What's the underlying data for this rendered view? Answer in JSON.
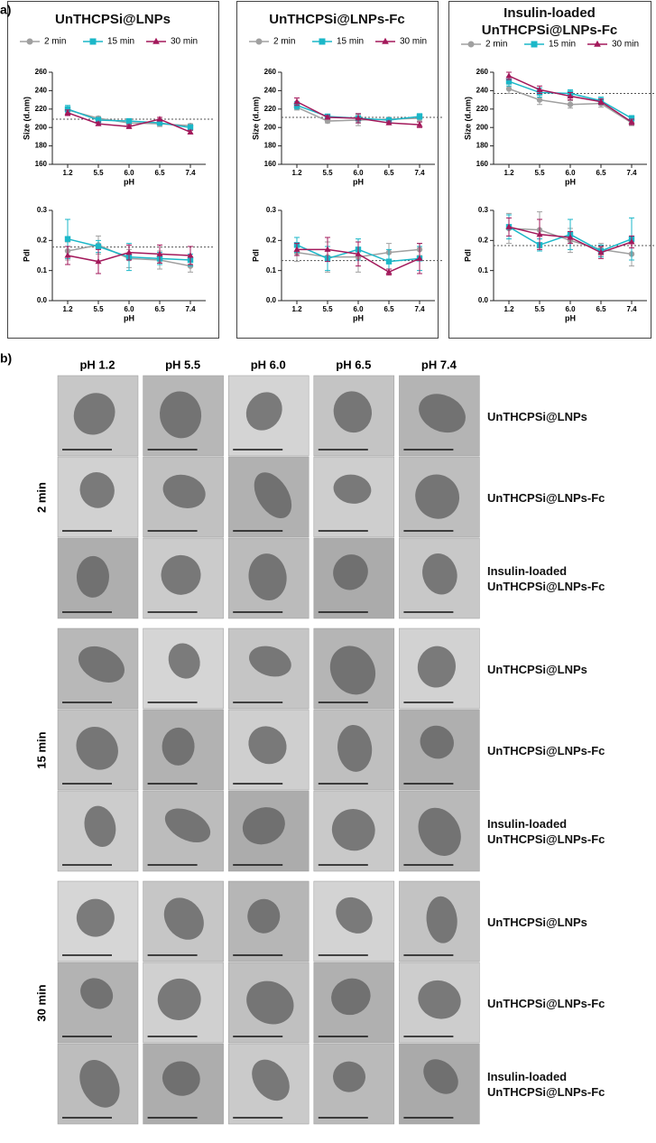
{
  "panel_a_label": "a)",
  "panel_b_label": "b)",
  "chart_data": [
    {
      "type": "line",
      "title": "UnTHCPSi@LNPs",
      "ylabel": "Size (d.nm)",
      "xlabel": "pH",
      "categories": [
        "1.2",
        "5.5",
        "6.0",
        "6.5",
        "7.4"
      ],
      "ylim": [
        160,
        260
      ],
      "yticks": [
        160,
        180,
        200,
        220,
        240,
        260
      ],
      "reference": 209,
      "series": [
        {
          "name": "2 min",
          "color": "#a0a0a0",
          "marker": "circle",
          "values": [
            219,
            210,
            205,
            204,
            202
          ],
          "errors": [
            3,
            2,
            2,
            3,
            2
          ]
        },
        {
          "name": "15 min",
          "color": "#1bb7c8",
          "marker": "square",
          "values": [
            220,
            208,
            207,
            205,
            200
          ],
          "errors": [
            4,
            3,
            2,
            2,
            3
          ]
        },
        {
          "name": "30 min",
          "color": "#a3195b",
          "marker": "triangle",
          "values": [
            216,
            204,
            201,
            209,
            195
          ],
          "errors": [
            3,
            2,
            2,
            2,
            2
          ]
        }
      ]
    },
    {
      "type": "line",
      "ylabel": "PdI",
      "xlabel": "pH",
      "categories": [
        "1.2",
        "5.5",
        "6.0",
        "6.5",
        "7.4"
      ],
      "ylim": [
        0,
        0.3
      ],
      "yticks": [
        {
          "value": 0,
          "label": "0.0"
        },
        0.1,
        0.2,
        0.3
      ],
      "reference": 0.178,
      "series": [
        {
          "color": "#a0a0a0",
          "marker": "circle",
          "values": [
            0.165,
            0.185,
            0.14,
            0.135,
            0.115
          ],
          "errors": [
            0.03,
            0.03,
            0.03,
            0.03,
            0.02
          ]
        },
        {
          "color": "#1bb7c8",
          "marker": "square",
          "values": [
            0.205,
            0.18,
            0.145,
            0.14,
            0.135
          ],
          "errors": [
            0.065,
            0.02,
            0.045,
            0.02,
            0.02
          ]
        },
        {
          "color": "#a3195b",
          "marker": "triangle",
          "values": [
            0.15,
            0.13,
            0.16,
            0.155,
            0.15
          ],
          "errors": [
            0.03,
            0.04,
            0.025,
            0.03,
            0.03
          ]
        }
      ]
    },
    {
      "type": "line",
      "title": "UnTHCPSi@LNPs-Fc",
      "ylabel": "Size (d.nm)",
      "xlabel": "pH",
      "categories": [
        "1.2",
        "5.5",
        "6.0",
        "6.5",
        "7.4"
      ],
      "ylim": [
        160,
        260
      ],
      "yticks": [
        160,
        180,
        200,
        220,
        240,
        260
      ],
      "reference": 211,
      "series": [
        {
          "name": "2 min",
          "color": "#a0a0a0",
          "marker": "circle",
          "values": [
            222,
            207,
            208,
            209,
            210
          ],
          "errors": [
            3,
            2,
            6,
            2,
            3
          ]
        },
        {
          "name": "15 min",
          "color": "#1bb7c8",
          "marker": "square",
          "values": [
            224,
            212,
            210,
            208,
            212
          ],
          "errors": [
            4,
            2,
            5,
            2,
            3
          ]
        },
        {
          "name": "30 min",
          "color": "#a3195b",
          "marker": "triangle",
          "values": [
            228,
            211,
            210,
            205,
            203
          ],
          "errors": [
            4,
            2,
            5,
            2,
            3
          ]
        }
      ]
    },
    {
      "type": "line",
      "ylabel": "PdI",
      "xlabel": "pH",
      "categories": [
        "1.2",
        "5.5",
        "6.0",
        "6.5",
        "7.4"
      ],
      "ylim": [
        0,
        0.3
      ],
      "yticks": [
        {
          "value": 0,
          "label": "0.0"
        },
        0.1,
        0.2,
        0.3
      ],
      "reference": 0.133,
      "series": [
        {
          "color": "#a0a0a0",
          "marker": "circle",
          "values": [
            0.16,
            0.145,
            0.145,
            0.16,
            0.17
          ],
          "errors": [
            0.03,
            0.05,
            0.05,
            0.03,
            0.02
          ]
        },
        {
          "color": "#1bb7c8",
          "marker": "square",
          "values": [
            0.185,
            0.14,
            0.17,
            0.13,
            0.14
          ],
          "errors": [
            0.025,
            0.04,
            0.035,
            0.04,
            0.04
          ]
        },
        {
          "color": "#a3195b",
          "marker": "triangle",
          "values": [
            0.17,
            0.17,
            0.155,
            0.095,
            0.14
          ],
          "errors": [
            0.02,
            0.04,
            0.04,
            0.01,
            0.05
          ]
        }
      ]
    },
    {
      "type": "line",
      "title": "Insulin-loaded UnTHCPSi@LNPs-Fc",
      "ylabel": "Size (d.nm)",
      "xlabel": "pH",
      "categories": [
        "1.2",
        "5.5",
        "6.0",
        "6.5",
        "7.4"
      ],
      "ylim": [
        160,
        260
      ],
      "yticks": [
        160,
        180,
        200,
        220,
        240,
        260
      ],
      "reference": 237,
      "series": [
        {
          "name": "2 min",
          "color": "#a0a0a0",
          "marker": "circle",
          "values": [
            242,
            230,
            225,
            226,
            205
          ],
          "errors": [
            5,
            5,
            4,
            4,
            3
          ]
        },
        {
          "name": "15 min",
          "color": "#1bb7c8",
          "marker": "square",
          "values": [
            250,
            238,
            237,
            229,
            210
          ],
          "errors": [
            5,
            5,
            4,
            4,
            3
          ]
        },
        {
          "name": "30 min",
          "color": "#a3195b",
          "marker": "triangle",
          "values": [
            256,
            241,
            234,
            228,
            206
          ],
          "errors": [
            4,
            4,
            4,
            3,
            3
          ]
        }
      ]
    },
    {
      "type": "line",
      "ylabel": "PdI",
      "xlabel": "pH",
      "categories": [
        "1.2",
        "5.5",
        "6.0",
        "6.5",
        "7.4"
      ],
      "ylim": [
        0,
        0.3
      ],
      "yticks": [
        {
          "value": 0,
          "label": "0.0"
        },
        0.1,
        0.2,
        0.3
      ],
      "reference": 0.183,
      "series": [
        {
          "color": "#a0a0a0",
          "marker": "circle",
          "values": [
            0.24,
            0.235,
            0.2,
            0.17,
            0.155
          ],
          "errors": [
            0.05,
            0.06,
            0.04,
            0.02,
            0.04
          ]
        },
        {
          "color": "#1bb7c8",
          "marker": "square",
          "values": [
            0.245,
            0.185,
            0.22,
            0.165,
            0.205
          ],
          "errors": [
            0.04,
            0.02,
            0.05,
            0.02,
            0.07
          ]
        },
        {
          "color": "#a3195b",
          "marker": "triangle",
          "values": [
            0.245,
            0.22,
            0.21,
            0.16,
            0.195
          ],
          "errors": [
            0.03,
            0.05,
            0.02,
            0.02,
            0.02
          ]
        }
      ]
    }
  ],
  "tem_grid": {
    "columns": [
      "pH 1.2",
      "pH 5.5",
      "pH 6.0",
      "pH 6.5",
      "pH 7.4"
    ],
    "groups": [
      {
        "label": "2 min",
        "rows": [
          "UnTHCPSi@LNPs",
          "UnTHCPSi@LNPs-Fc",
          "Insulin-loaded UnTHCPSi@LNPs-Fc"
        ]
      },
      {
        "label": "15 min",
        "rows": [
          "UnTHCPSi@LNPs",
          "UnTHCPSi@LNPs-Fc",
          "Insulin-loaded UnTHCPSi@LNPs-Fc"
        ]
      },
      {
        "label": "30 min",
        "rows": [
          "UnTHCPSi@LNPs",
          "UnTHCPSi@LNPs-Fc",
          "Insulin-loaded UnTHCPSi@LNPs-Fc"
        ]
      }
    ]
  }
}
